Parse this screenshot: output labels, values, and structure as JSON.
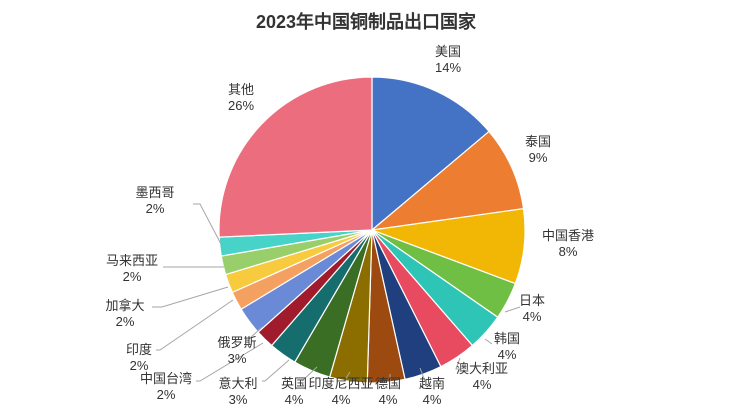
{
  "chart_data": {
    "type": "pie",
    "title": "2023年中国铜制品出口国家",
    "series": [
      {
        "name": "",
        "slices": [
          {
            "label": "美国",
            "value": 14,
            "text": "14%",
            "color": "#4472C4"
          },
          {
            "label": "泰国",
            "value": 9,
            "text": "9%",
            "color": "#ED7D31"
          },
          {
            "label": "中国香港",
            "value": 8,
            "text": "8%",
            "color": "#F2B705"
          },
          {
            "label": "日本",
            "value": 4,
            "text": "4%",
            "color": "#70BF45"
          },
          {
            "label": "韩国",
            "value": 4,
            "text": "4%",
            "color": "#2EC4B6"
          },
          {
            "label": "澳大利亚",
            "value": 4,
            "text": "4%",
            "color": "#E84A5F"
          },
          {
            "label": "越南",
            "value": 4,
            "text": "4%",
            "color": "#1F3F7F"
          },
          {
            "label": "德国",
            "value": 4,
            "text": "4%",
            "color": "#9C4A0F"
          },
          {
            "label": "印度尼西亚",
            "value": 4,
            "text": "4%",
            "color": "#8C6D00"
          },
          {
            "label": "英国",
            "value": 4,
            "text": "4%",
            "color": "#3A6E24"
          },
          {
            "label": "意大利",
            "value": 3,
            "text": "3%",
            "color": "#156D6D"
          },
          {
            "label": "中国台湾",
            "value": 2,
            "text": "2%",
            "color": "#A01C2C"
          },
          {
            "label": "俄罗斯",
            "value": 3,
            "text": "3%",
            "color": "#6A89D6"
          },
          {
            "label": "印度",
            "value": 2,
            "text": "2%",
            "color": "#F4A060"
          },
          {
            "label": "加拿大",
            "value": 2,
            "text": "2%",
            "color": "#F7CB3D"
          },
          {
            "label": "马来西亚",
            "value": 2,
            "text": "2%",
            "color": "#98CF6A"
          },
          {
            "label": "墨西哥",
            "value": 2,
            "text": "2%",
            "color": "#48D3C8"
          },
          {
            "label": "其他",
            "value": 26,
            "text": "26%",
            "color": "#EC6E7E"
          }
        ]
      }
    ],
    "legend": "none",
    "label_placement": "outside"
  }
}
